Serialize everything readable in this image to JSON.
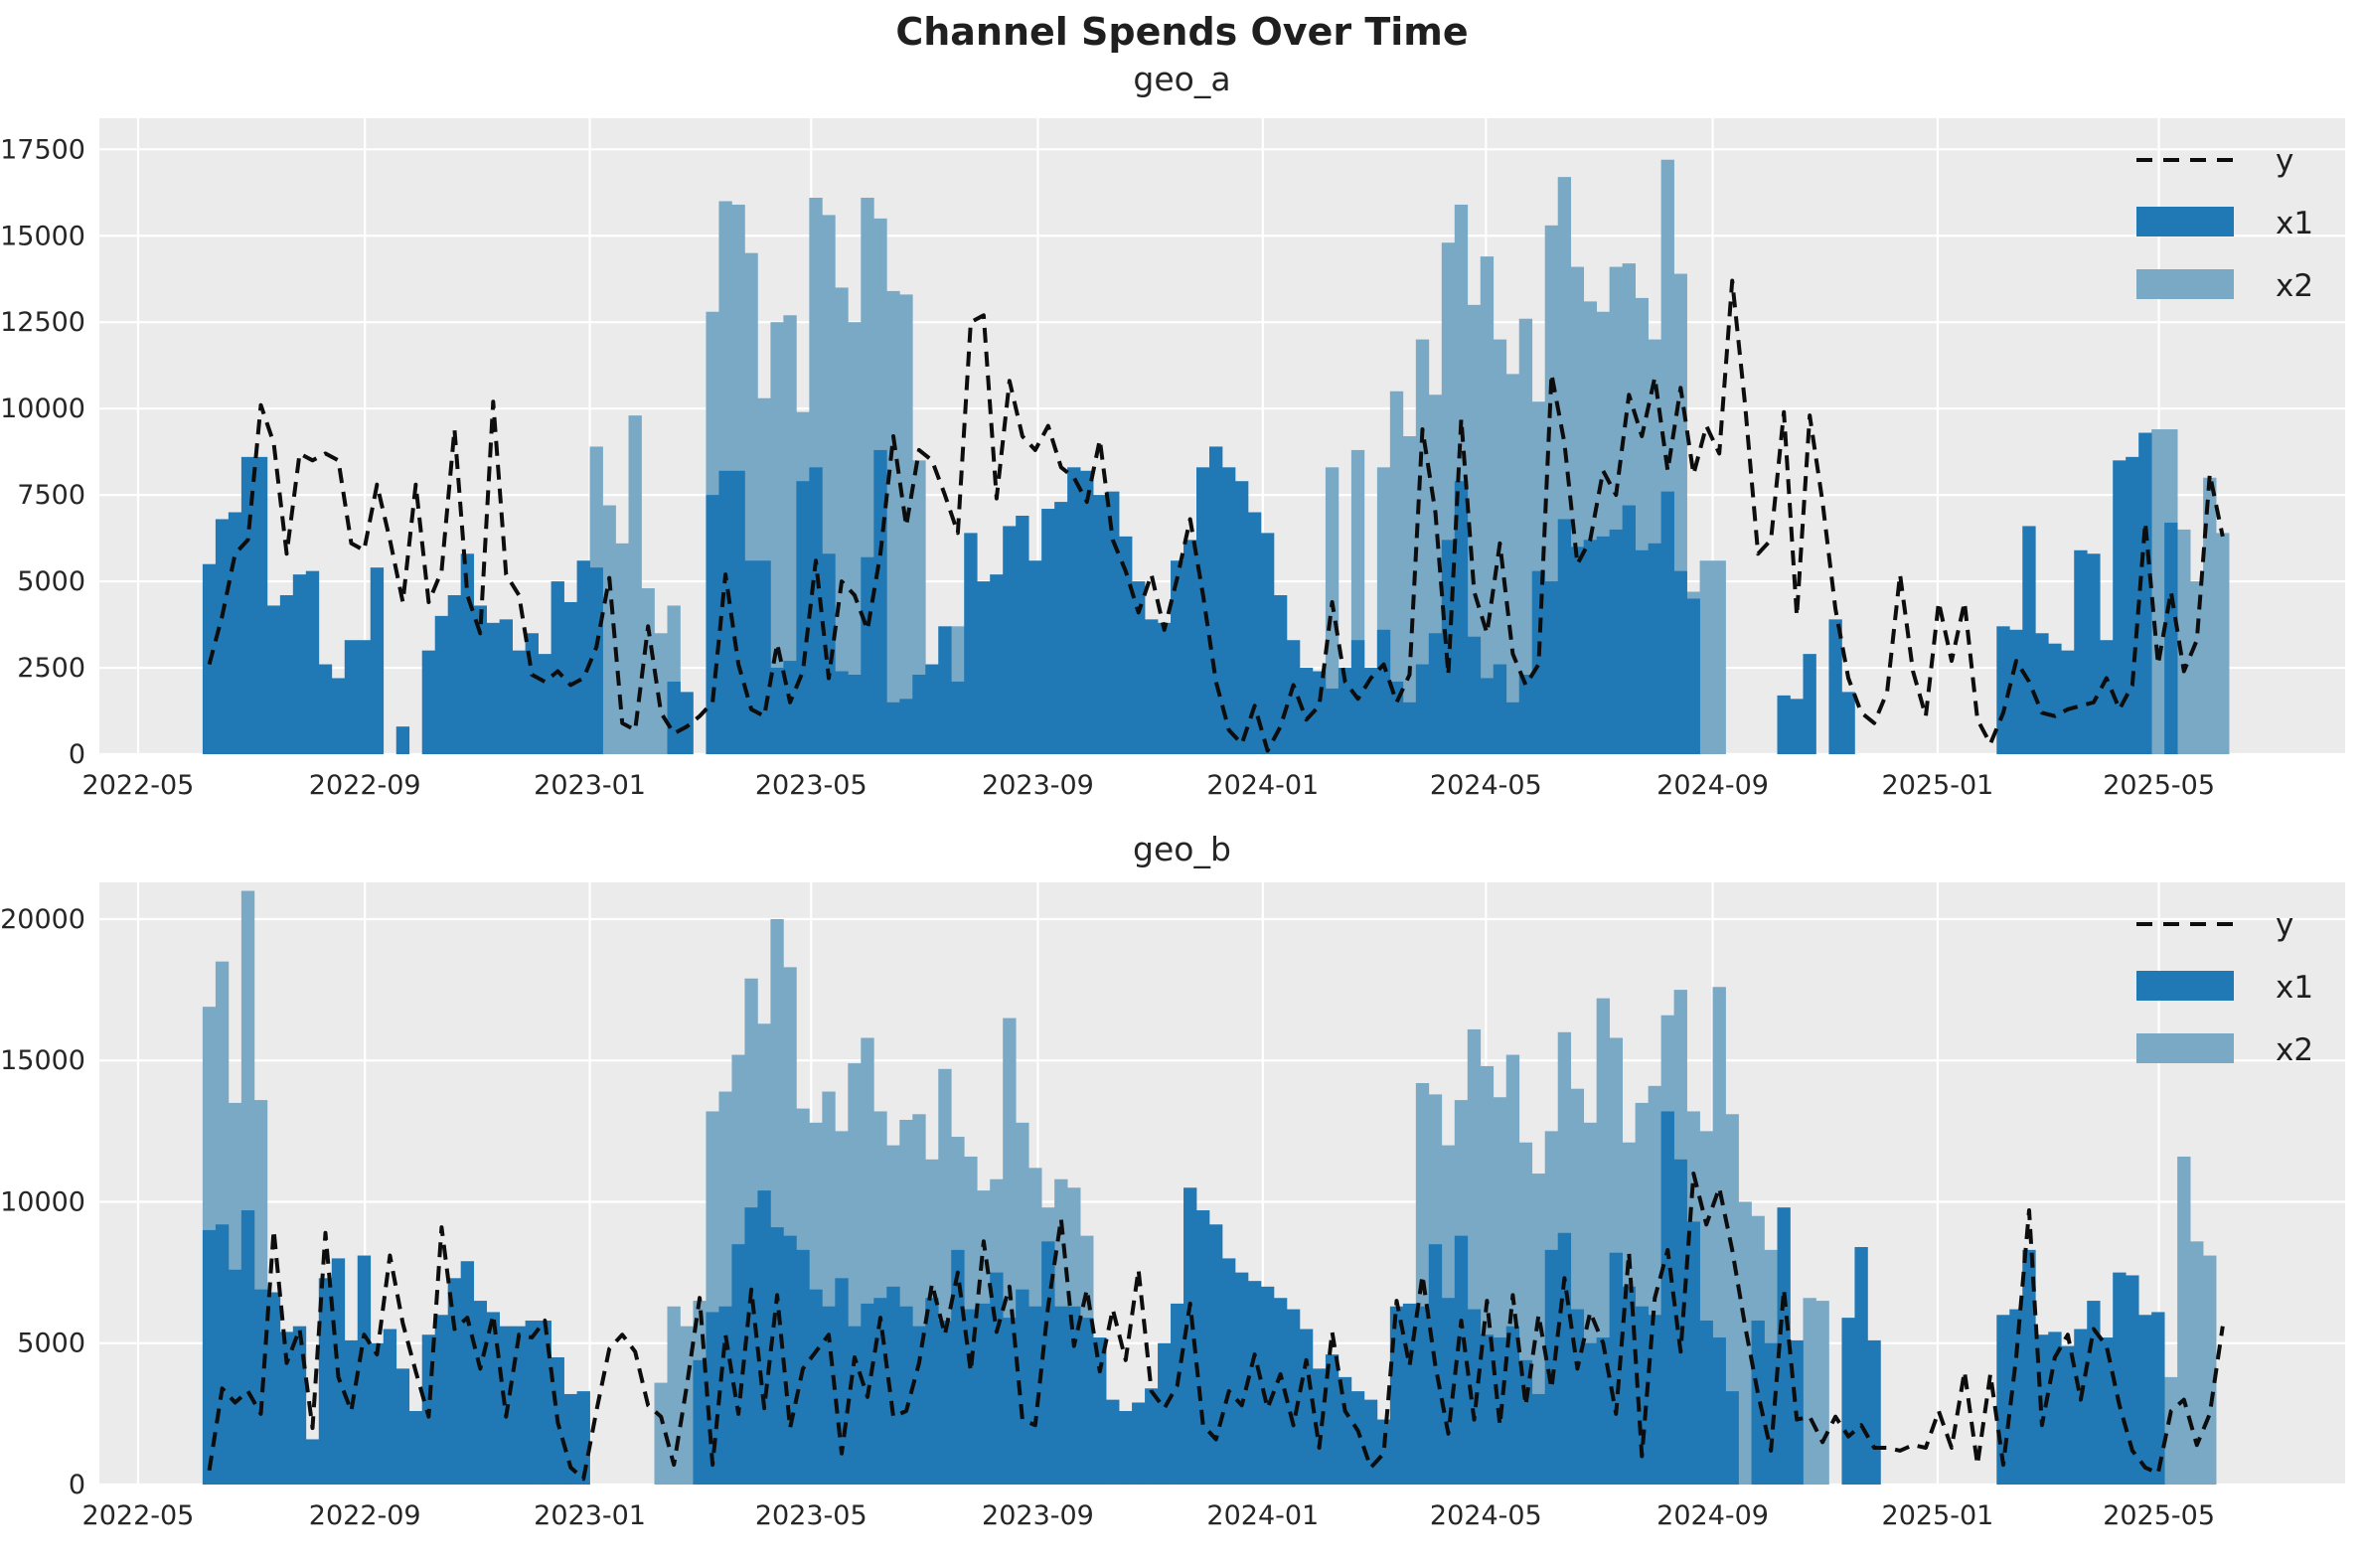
{
  "title": "Channel Spends Over Time",
  "colors": {
    "x1": "#2078b4",
    "x2": "#7aa9c6",
    "y_line": "#0d0d0d",
    "plot_bg": "#ebebeb",
    "grid": "#ffffff",
    "text": "#262626"
  },
  "legend": {
    "labels": [
      "y",
      "x1",
      "x2"
    ],
    "position": "upper right"
  },
  "x_axis": {
    "domain": [
      "2022-04-10",
      "2025-08-10"
    ],
    "tick_dates": [
      "2022-05-01",
      "2022-09-01",
      "2023-01-01",
      "2023-05-01",
      "2023-09-01",
      "2024-01-01",
      "2024-05-01",
      "2024-09-01",
      "2025-01-01",
      "2025-05-01"
    ],
    "tick_labels": [
      "2022-05",
      "2022-09",
      "2023-01",
      "2023-05",
      "2023-09",
      "2024-01",
      "2024-05",
      "2024-09",
      "2025-01",
      "2025-05"
    ]
  },
  "chart_data": [
    {
      "type": "bar+line",
      "title": "geo_a",
      "legend_entries": [
        "y",
        "x1",
        "x2"
      ],
      "x_start": "2022-06-05",
      "x_step_days": 7,
      "ylim": [
        0,
        18400
      ],
      "yticks": [
        0,
        2500,
        5000,
        7500,
        10000,
        12500,
        15000,
        17500
      ],
      "grid": true,
      "series": [
        {
          "name": "x2",
          "type": "bar",
          "values": [
            0,
            0,
            0,
            0,
            0,
            0,
            0,
            0,
            0,
            0,
            0,
            0,
            0,
            0,
            0,
            0,
            0,
            0,
            0,
            0,
            0,
            0,
            0,
            0,
            0,
            0,
            0,
            0,
            0,
            0,
            8900,
            7200,
            6100,
            9800,
            4800,
            3500,
            4300,
            0,
            0,
            12800,
            16000,
            15900,
            14500,
            10300,
            12500,
            12700,
            9900,
            16100,
            15600,
            13500,
            12500,
            16100,
            15500,
            13400,
            13300,
            8500,
            0,
            0,
            3700,
            0,
            0,
            0,
            0,
            0,
            0,
            0,
            0,
            0,
            0,
            0,
            0,
            0,
            0,
            0,
            0,
            0,
            0,
            0,
            0,
            0,
            0,
            0,
            0,
            0,
            0,
            0,
            0,
            8300,
            0,
            8800,
            0,
            8300,
            10500,
            9200,
            12000,
            10400,
            14800,
            15900,
            13000,
            14400,
            12000,
            11000,
            12600,
            10200,
            15300,
            16700,
            14100,
            13100,
            12800,
            14100,
            14200,
            13200,
            12000,
            17200,
            13900,
            4700,
            5600,
            5600,
            0,
            0,
            0,
            0,
            0,
            0,
            0,
            0,
            0,
            0,
            0,
            0,
            0,
            0,
            0,
            0,
            0,
            0,
            0,
            0,
            0,
            0,
            0,
            0,
            0,
            0,
            0,
            0,
            0,
            0,
            0,
            0,
            0,
            9400,
            9400,
            6500,
            5000,
            8000,
            6400
          ]
        },
        {
          "name": "x1",
          "type": "bar",
          "values": [
            5500,
            6800,
            7000,
            8600,
            8600,
            4300,
            4600,
            5200,
            5300,
            2600,
            2200,
            3300,
            3300,
            5400,
            0,
            800,
            0,
            3000,
            4000,
            4600,
            5800,
            4300,
            3800,
            3900,
            3000,
            3500,
            2900,
            5000,
            4400,
            5600,
            5400,
            0,
            0,
            0,
            0,
            0,
            2100,
            1800,
            0,
            7500,
            8200,
            8200,
            5600,
            5600,
            2500,
            2700,
            7900,
            8300,
            5800,
            2400,
            2300,
            5700,
            8800,
            1500,
            1600,
            2300,
            2600,
            3700,
            2100,
            6400,
            5000,
            5200,
            6600,
            6900,
            5600,
            7100,
            7300,
            8300,
            8200,
            7500,
            7600,
            6300,
            5000,
            3900,
            3800,
            5600,
            6200,
            8300,
            8900,
            8300,
            7900,
            7000,
            6400,
            4600,
            3300,
            2500,
            2400,
            1900,
            2500,
            3300,
            2500,
            3600,
            2100,
            1500,
            2600,
            3500,
            6200,
            7900,
            3400,
            2200,
            2600,
            1500,
            2300,
            5300,
            5000,
            6800,
            6000,
            6200,
            6300,
            6500,
            7200,
            5900,
            6100,
            7600,
            5300,
            4500,
            0,
            0,
            0,
            0,
            0,
            0,
            1700,
            1600,
            2900,
            0,
            3900,
            1800,
            0,
            0,
            0,
            0,
            0,
            0,
            0,
            0,
            0,
            0,
            0,
            3700,
            3600,
            6600,
            3500,
            3200,
            3000,
            5900,
            5800,
            3300,
            8500,
            8600,
            9300,
            0,
            6700,
            0,
            0,
            0,
            0
          ]
        },
        {
          "name": "y",
          "type": "line",
          "style": "dashed",
          "values": [
            2600,
            4000,
            5800,
            6200,
            10100,
            9000,
            5800,
            8700,
            8500,
            8700,
            8500,
            6100,
            5900,
            7800,
            6200,
            4400,
            7800,
            4400,
            5300,
            9400,
            4600,
            3500,
            10200,
            5200,
            4600,
            2300,
            2100,
            2400,
            2000,
            2200,
            3100,
            5100,
            900,
            700,
            3700,
            1200,
            600,
            800,
            1100,
            1500,
            5200,
            2600,
            1300,
            1100,
            3200,
            1500,
            2400,
            5600,
            2200,
            5000,
            4600,
            3600,
            5800,
            9200,
            6600,
            8800,
            8500,
            7500,
            6400,
            12500,
            12700,
            7400,
            10800,
            9200,
            8800,
            9500,
            8300,
            8000,
            7300,
            9100,
            6200,
            5300,
            4100,
            5200,
            3600,
            5100,
            6800,
            4600,
            2100,
            700,
            300,
            1400,
            100,
            800,
            2000,
            1000,
            1400,
            4400,
            2100,
            1600,
            2200,
            2600,
            1500,
            2300,
            9400,
            7000,
            2300,
            9700,
            4700,
            3500,
            6100,
            2900,
            2000,
            2600,
            11000,
            9000,
            5500,
            6200,
            8200,
            7500,
            10400,
            9200,
            10900,
            8200,
            10600,
            8100,
            9500,
            8700,
            13700,
            10100,
            5800,
            6200,
            9900,
            4000,
            9800,
            7300,
            4200,
            2200,
            1200,
            900,
            1800,
            5200,
            2400,
            1100,
            4400,
            2700,
            4400,
            1000,
            300,
            1200,
            2700,
            2100,
            1200,
            1100,
            1300,
            1400,
            1500,
            2200,
            1300,
            2000,
            6700,
            2600,
            4700,
            2400,
            3300,
            8100,
            6300
          ]
        }
      ]
    },
    {
      "type": "bar+line",
      "title": "geo_b",
      "legend_entries": [
        "y",
        "x1",
        "x2"
      ],
      "x_start": "2022-06-05",
      "x_step_days": 7,
      "ylim": [
        0,
        21300
      ],
      "yticks": [
        0,
        5000,
        10000,
        15000,
        20000
      ],
      "grid": true,
      "series": [
        {
          "name": "x2",
          "type": "bar",
          "values": [
            16900,
            18500,
            13500,
            21000,
            13600,
            0,
            0,
            0,
            0,
            0,
            0,
            0,
            0,
            0,
            0,
            0,
            0,
            0,
            0,
            0,
            0,
            0,
            0,
            0,
            0,
            0,
            0,
            0,
            0,
            0,
            0,
            0,
            0,
            0,
            0,
            3600,
            6300,
            5600,
            6500,
            13200,
            13900,
            15200,
            17900,
            16300,
            20000,
            18300,
            13300,
            12800,
            13900,
            12500,
            14900,
            15800,
            13200,
            12000,
            12900,
            13100,
            11500,
            14700,
            12300,
            11600,
            10400,
            10800,
            16500,
            12800,
            11200,
            9800,
            10800,
            10500,
            8800,
            0,
            0,
            0,
            0,
            0,
            0,
            0,
            0,
            0,
            0,
            0,
            0,
            0,
            0,
            0,
            0,
            0,
            0,
            0,
            0,
            0,
            0,
            0,
            0,
            0,
            14200,
            13800,
            12000,
            13600,
            16100,
            14800,
            13700,
            15200,
            12100,
            11000,
            12500,
            16000,
            14000,
            12800,
            17200,
            15800,
            12100,
            13500,
            14100,
            16600,
            17500,
            13200,
            12500,
            17600,
            13100,
            10000,
            9500,
            8300,
            0,
            0,
            6600,
            6500,
            0,
            0,
            0,
            0,
            0,
            0,
            0,
            0,
            0,
            0,
            0,
            0,
            0,
            0,
            0,
            0,
            0,
            0,
            0,
            0,
            0,
            0,
            0,
            0,
            0,
            0,
            3800,
            11600,
            8600,
            8100,
            0
          ]
        },
        {
          "name": "x1",
          "type": "bar",
          "values": [
            9000,
            9200,
            7600,
            9700,
            6900,
            6800,
            5400,
            5600,
            1600,
            7300,
            8000,
            5100,
            8100,
            5000,
            5500,
            4100,
            2600,
            5300,
            6000,
            7300,
            7900,
            6500,
            6100,
            5600,
            5600,
            5800,
            5800,
            4500,
            3200,
            3300,
            0,
            0,
            0,
            0,
            0,
            0,
            0,
            0,
            4400,
            6100,
            6300,
            8500,
            9800,
            10400,
            9100,
            8800,
            8300,
            6900,
            6300,
            7300,
            5600,
            6400,
            6600,
            7000,
            6300,
            5600,
            6600,
            5800,
            8300,
            6200,
            6400,
            7500,
            5900,
            6900,
            6300,
            8600,
            6300,
            6300,
            5900,
            5200,
            3000,
            2600,
            2900,
            3400,
            5000,
            6400,
            10500,
            9700,
            9200,
            8000,
            7500,
            7200,
            7000,
            6600,
            6200,
            5500,
            4100,
            4600,
            3800,
            3300,
            3000,
            2300,
            6300,
            6400,
            6300,
            8500,
            6600,
            8800,
            6200,
            5300,
            5200,
            5600,
            4400,
            3200,
            8300,
            8900,
            6200,
            5000,
            5200,
            8200,
            7000,
            6300,
            6000,
            13200,
            11500,
            9300,
            5800,
            5200,
            3300,
            0,
            5800,
            5000,
            9800,
            5100,
            0,
            0,
            0,
            5900,
            8400,
            5100,
            0,
            0,
            0,
            0,
            0,
            0,
            0,
            0,
            0,
            6000,
            6200,
            8300,
            5300,
            5400,
            4900,
            5500,
            6500,
            5200,
            7500,
            7400,
            6000,
            6100,
            0,
            0,
            0,
            0,
            0
          ]
        },
        {
          "name": "y",
          "type": "line",
          "style": "dashed",
          "values": [
            500,
            3400,
            2900,
            3300,
            2500,
            9000,
            4300,
            5500,
            2000,
            8900,
            3800,
            2600,
            5300,
            4600,
            8100,
            5700,
            4000,
            2400,
            9100,
            5500,
            5900,
            4100,
            6000,
            2400,
            5300,
            5200,
            5800,
            2200,
            600,
            200,
            2600,
            4800,
            5300,
            4700,
            2800,
            2400,
            700,
            3500,
            6600,
            700,
            5300,
            2500,
            6900,
            2700,
            6700,
            2000,
            4100,
            4700,
            5300,
            1100,
            4500,
            3100,
            5900,
            2400,
            2600,
            4300,
            7100,
            5300,
            7500,
            4000,
            8600,
            5400,
            7000,
            2300,
            2100,
            6300,
            9400,
            4900,
            6900,
            4000,
            6200,
            4400,
            7600,
            3300,
            2700,
            3500,
            6400,
            2100,
            1600,
            3300,
            2800,
            4600,
            2700,
            3900,
            2100,
            4400,
            1300,
            5400,
            2600,
            1900,
            600,
            1100,
            6500,
            4200,
            7400,
            4200,
            1800,
            5800,
            2300,
            6500,
            2100,
            6700,
            2800,
            6000,
            3400,
            7300,
            4100,
            6100,
            5000,
            2500,
            8200,
            1000,
            6600,
            8300,
            4700,
            11000,
            9200,
            10500,
            8300,
            5600,
            3200,
            1200,
            6900,
            2300,
            2400,
            1500,
            2400,
            1700,
            2100,
            1300,
            1300,
            1200,
            1400,
            1300,
            2600,
            1300,
            4000,
            700,
            3900,
            700,
            4500,
            9700,
            2100,
            4500,
            5300,
            3000,
            5500,
            4900,
            2800,
            1200,
            600,
            400,
            2600,
            3000,
            1400,
            2500,
            5600
          ]
        }
      ]
    }
  ]
}
